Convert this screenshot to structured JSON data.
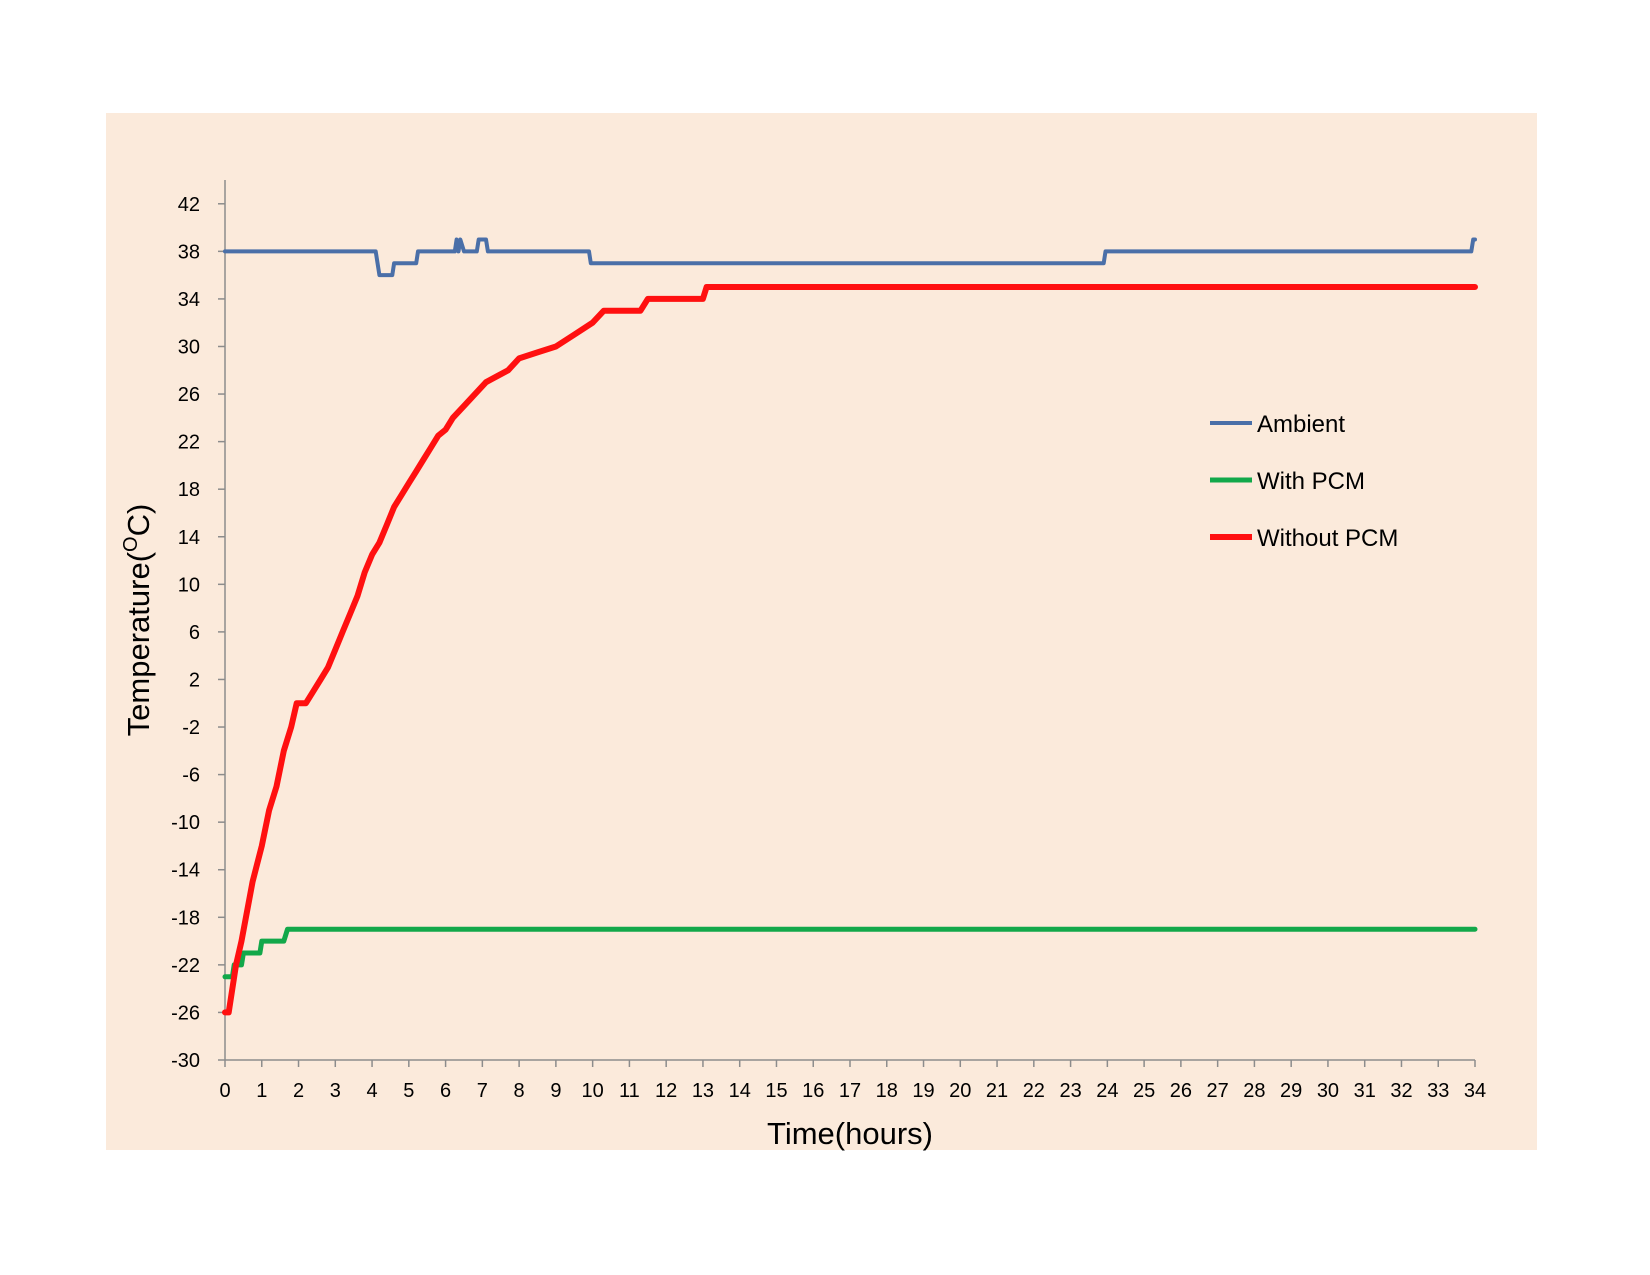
{
  "chart_data": {
    "type": "line",
    "xlabel": "Time(hours)",
    "ylabel_main": "Temperature(",
    "ylabel_sup": "O",
    "ylabel_unit": "C)",
    "xlim": [
      0,
      34
    ],
    "ylim": [
      -30,
      44
    ],
    "x_ticks": [
      0,
      1,
      2,
      3,
      4,
      5,
      6,
      7,
      8,
      9,
      10,
      11,
      12,
      13,
      14,
      15,
      16,
      17,
      18,
      19,
      20,
      21,
      22,
      23,
      24,
      25,
      26,
      27,
      28,
      29,
      30,
      31,
      32,
      33,
      34
    ],
    "y_ticks": [
      42,
      38,
      34,
      30,
      26,
      22,
      18,
      14,
      10,
      6,
      2,
      -2,
      -6,
      -10,
      -14,
      -18,
      -22,
      -26,
      -30
    ],
    "grid": false,
    "legend_position": "center-right",
    "series": [
      {
        "name": "Ambient",
        "color": "#4a6fa8",
        "width": 4,
        "points": [
          [
            0,
            38
          ],
          [
            4.1,
            38
          ],
          [
            4.2,
            36
          ],
          [
            4.55,
            36
          ],
          [
            4.6,
            37
          ],
          [
            5.2,
            37
          ],
          [
            5.25,
            38
          ],
          [
            6.25,
            38
          ],
          [
            6.3,
            39
          ],
          [
            6.35,
            38
          ],
          [
            6.4,
            39
          ],
          [
            6.5,
            38
          ],
          [
            6.85,
            38
          ],
          [
            6.9,
            39
          ],
          [
            7.1,
            39
          ],
          [
            7.15,
            38
          ],
          [
            9.9,
            38
          ],
          [
            9.95,
            37
          ],
          [
            23.9,
            37
          ],
          [
            23.95,
            38
          ],
          [
            33.9,
            38
          ],
          [
            33.95,
            39
          ],
          [
            34,
            39
          ]
        ]
      },
      {
        "name": "With PCM",
        "color": "#12a84a",
        "width": 5,
        "points": [
          [
            0,
            -23
          ],
          [
            0.2,
            -23
          ],
          [
            0.25,
            -22
          ],
          [
            0.45,
            -22
          ],
          [
            0.5,
            -21
          ],
          [
            0.95,
            -21
          ],
          [
            1,
            -20
          ],
          [
            1.6,
            -20
          ],
          [
            1.7,
            -19
          ],
          [
            34,
            -19
          ]
        ]
      },
      {
        "name": "Without PCM",
        "color": "#ff1010",
        "width": 6,
        "points": [
          [
            0,
            -26
          ],
          [
            0.1,
            -26
          ],
          [
            0.3,
            -22
          ],
          [
            0.45,
            -20
          ],
          [
            0.75,
            -15
          ],
          [
            1,
            -12
          ],
          [
            1.2,
            -9
          ],
          [
            1.4,
            -7
          ],
          [
            1.6,
            -4
          ],
          [
            1.8,
            -2
          ],
          [
            1.95,
            0
          ],
          [
            2.2,
            0
          ],
          [
            2.4,
            1
          ],
          [
            2.6,
            2
          ],
          [
            2.8,
            3
          ],
          [
            3,
            4.5
          ],
          [
            3.2,
            6
          ],
          [
            3.4,
            7.5
          ],
          [
            3.6,
            9
          ],
          [
            3.8,
            11
          ],
          [
            4,
            12.5
          ],
          [
            4.2,
            13.5
          ],
          [
            4.4,
            15
          ],
          [
            4.6,
            16.5
          ],
          [
            4.8,
            17.5
          ],
          [
            5,
            18.5
          ],
          [
            5.2,
            19.5
          ],
          [
            5.4,
            20.5
          ],
          [
            5.6,
            21.5
          ],
          [
            5.8,
            22.5
          ],
          [
            6,
            23
          ],
          [
            6.2,
            24
          ],
          [
            6.5,
            25
          ],
          [
            6.8,
            26
          ],
          [
            7.1,
            27
          ],
          [
            7.4,
            27.5
          ],
          [
            7.7,
            28
          ],
          [
            8,
            29
          ],
          [
            8.5,
            29.5
          ],
          [
            9,
            30
          ],
          [
            9.5,
            31
          ],
          [
            10,
            32
          ],
          [
            10.3,
            33
          ],
          [
            11.3,
            33
          ],
          [
            11.5,
            34
          ],
          [
            13,
            34
          ],
          [
            13.1,
            35
          ],
          [
            34,
            35
          ]
        ]
      }
    ]
  }
}
